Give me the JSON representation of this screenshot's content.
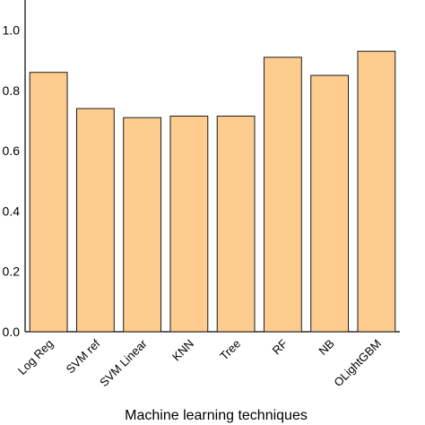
{
  "chart_data": {
    "type": "bar",
    "categories": [
      "Log Reg",
      "SVM ref",
      "SVM Linear",
      "KNN",
      "Tree",
      "RF",
      "NB",
      "OLightGBM"
    ],
    "values": [
      0.86,
      0.74,
      0.71,
      0.715,
      0.715,
      0.91,
      0.85,
      0.93
    ],
    "title": "",
    "xlabel": "Machine learning techniques",
    "ylabel": "",
    "ylim": [
      0,
      1.1
    ],
    "yticks": [
      "0.0",
      "0.2",
      "0.4",
      "0.6",
      "0.8",
      "1.0"
    ],
    "grid": false,
    "legend": "none",
    "colors": {
      "bar_fill": "#FFCC8F",
      "bar_stroke": "#1a1a1a",
      "axis": "#000000"
    }
  }
}
